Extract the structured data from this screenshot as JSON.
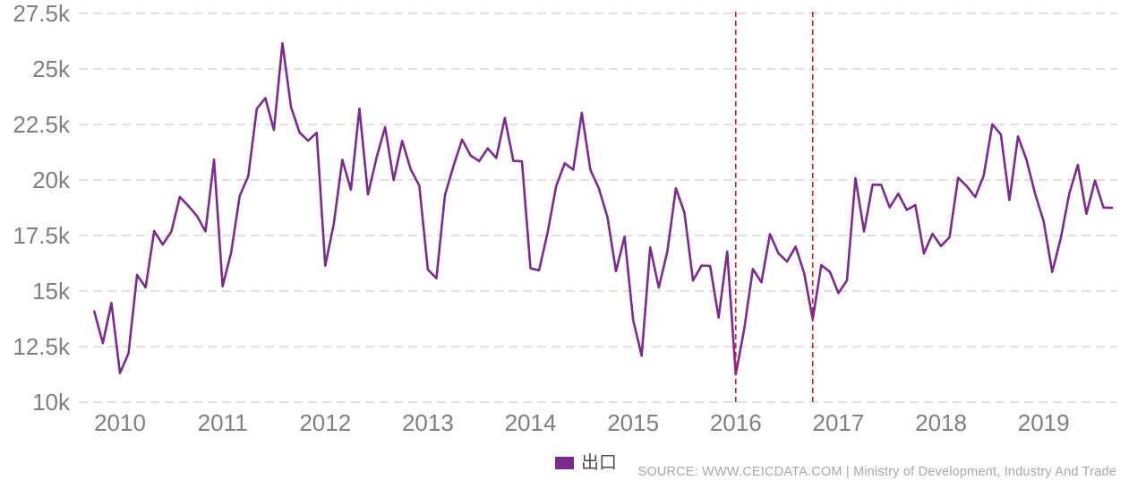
{
  "chart_data": {
    "type": "line",
    "title": "",
    "ylim": [
      10000,
      27500
    ],
    "grid": true,
    "legend_position": "bottom-center",
    "y_ticks": [
      {
        "label": "27.5k",
        "value": 27500
      },
      {
        "label": "25k",
        "value": 25000
      },
      {
        "label": "22.5k",
        "value": 22500
      },
      {
        "label": "20k",
        "value": 20000
      },
      {
        "label": "17.5k",
        "value": 17500
      },
      {
        "label": "15k",
        "value": 15000
      },
      {
        "label": "12.5k",
        "value": 12500
      },
      {
        "label": "10k",
        "value": 10000
      }
    ],
    "x_ticks": [
      {
        "label": "2010",
        "year": 2010
      },
      {
        "label": "2011",
        "year": 2011
      },
      {
        "label": "2012",
        "year": 2012
      },
      {
        "label": "2013",
        "year": 2013
      },
      {
        "label": "2014",
        "year": 2014
      },
      {
        "label": "2015",
        "year": 2015
      },
      {
        "label": "2016",
        "year": 2016
      },
      {
        "label": "2017",
        "year": 2017
      },
      {
        "label": "2018",
        "year": 2018
      },
      {
        "label": "2019",
        "year": 2019
      }
    ],
    "series": [
      {
        "name": "出口",
        "color": "#7a2b8d",
        "start_month": "2009-10",
        "values": [
          14082,
          12653,
          14463,
          11305,
          12197,
          15727,
          15161,
          17703,
          17094,
          17673,
          19236,
          18833,
          18380,
          17687,
          20919,
          15214,
          16732,
          19286,
          20173,
          23209,
          23689,
          22252,
          26159,
          23285,
          22140,
          21770,
          22127,
          16141,
          18026,
          20911,
          19566,
          23215,
          19349,
          21003,
          22382,
          19998,
          21761,
          20476,
          19746,
          15969,
          15577,
          19323,
          20631,
          21821,
          21105,
          20853,
          21422,
          20994,
          22794,
          20859,
          20846,
          16026,
          15934,
          17628,
          19724,
          20752,
          20467,
          23024,
          20464,
          19617,
          18330,
          15892,
          17451,
          13708,
          12091,
          16964,
          15156,
          16778,
          19628,
          18529,
          15475,
          16149,
          16134,
          13806,
          16783,
          11245,
          13312,
          15993,
          15394,
          17561,
          16695,
          16330,
          16999,
          15807,
          13731,
          16167,
          15870,
          14908,
          15472,
          20083,
          17686,
          19790,
          19786,
          18766,
          19385,
          18653,
          18876,
          16691,
          17578,
          17027,
          17426,
          20105,
          19731,
          19234,
          20207,
          22507,
          22049,
          19098,
          21961,
          20912,
          19379,
          18145,
          15861,
          17374,
          19392,
          20681,
          18478,
          19975,
          18757,
          18747
        ]
      }
    ],
    "vlines": [
      {
        "month": "2016-01",
        "color": "#cc2222",
        "style": "dashed"
      },
      {
        "month": "2016-10",
        "color": "#cc2222",
        "style": "dashed"
      }
    ]
  },
  "legend": {
    "label": "出口",
    "swatch_color": "#7a2b8d",
    "label_color": "#4d4d4d"
  },
  "source": {
    "text": "SOURCE: WWW.CEICDATA.COM | Ministry of Development, Industry And Trade",
    "color": "#a8a8a8"
  },
  "colors": {
    "background": "#ffffff",
    "grid": "#d7d7d7",
    "tick_label": "#7f7f7f"
  }
}
